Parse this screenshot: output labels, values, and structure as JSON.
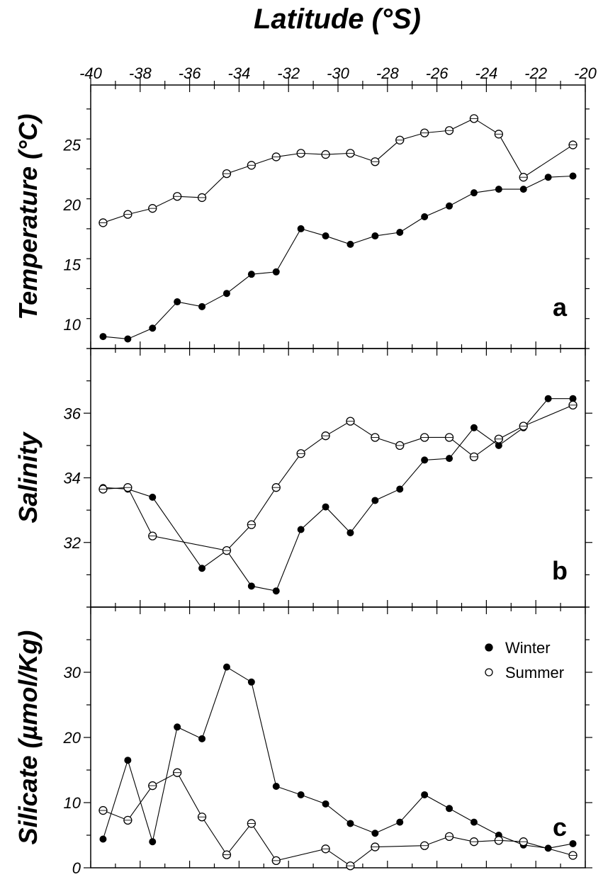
{
  "title": "Latitude (°S)",
  "x_axis": {
    "min": -40,
    "max": -20,
    "tick_labels": [
      "-40",
      "-38",
      "-36",
      "-34",
      "-32",
      "-30",
      "-28",
      "-26",
      "-24",
      "-22",
      "-20"
    ]
  },
  "legend": {
    "placement": "top-right",
    "winter": "Winter",
    "summer": "Summer"
  },
  "chart_data": [
    {
      "type": "line",
      "panel": "a",
      "ylabel": "Temperature (°C)",
      "ylim": [
        8,
        30
      ],
      "yticks": [
        10,
        15,
        20,
        25
      ],
      "x": [
        -39.5,
        -38.5,
        -37.5,
        -36.5,
        -35.5,
        -34.5,
        -33.5,
        -32.5,
        -31.5,
        -30.5,
        -29.5,
        -28.5,
        -27.5,
        -26.5,
        -25.5,
        -24.5,
        -23.5,
        -22.5,
        -21.5,
        -20.5
      ],
      "series": [
        {
          "name": "Winter",
          "marker": "filled",
          "x": [
            -39.5,
            -38.5,
            -37.5,
            -36.5,
            -35.5,
            -34.5,
            -33.5,
            -32.5,
            -31.5,
            -30.5,
            -29.5,
            -28.5,
            -27.5,
            -26.5,
            -25.5,
            -24.5,
            -23.5,
            -22.5,
            -21.5,
            -20.5
          ],
          "values": [
            9.0,
            8.8,
            9.7,
            11.9,
            11.5,
            12.6,
            14.2,
            14.4,
            18.0,
            17.4,
            16.7,
            17.4,
            17.7,
            19.0,
            19.9,
            21.0,
            21.3,
            21.3,
            22.3,
            22.4
          ]
        },
        {
          "name": "Summer",
          "marker": "open",
          "x": [
            -39.5,
            -38.5,
            -37.5,
            -36.5,
            -35.5,
            -34.5,
            -33.5,
            -32.5,
            -31.5,
            -30.5,
            -29.5,
            -28.5,
            -27.5,
            -26.5,
            -25.5,
            -24.5,
            -23.5,
            -22.5,
            -20.5
          ],
          "values": [
            18.5,
            19.2,
            19.7,
            20.7,
            20.6,
            22.6,
            23.3,
            24.0,
            24.3,
            24.2,
            24.3,
            23.6,
            25.4,
            26.0,
            26.2,
            27.2,
            25.9,
            22.3,
            25.0
          ]
        }
      ]
    },
    {
      "type": "line",
      "panel": "b",
      "ylabel": "Salinity",
      "ylim": [
        30,
        38
      ],
      "yticks": [
        32,
        34,
        36
      ],
      "series": [
        {
          "name": "Winter",
          "marker": "filled",
          "x": [
            -39.5,
            -38.5,
            -37.5,
            -35.5,
            -34.5,
            -33.5,
            -32.5,
            -31.5,
            -30.5,
            -29.5,
            -28.5,
            -27.5,
            -26.5,
            -25.5,
            -24.5,
            -23.5,
            -22.5,
            -21.5,
            -20.5
          ],
          "values": [
            33.7,
            33.65,
            33.4,
            31.2,
            31.75,
            30.65,
            30.5,
            32.4,
            33.1,
            32.3,
            33.3,
            33.65,
            34.55,
            34.6,
            35.55,
            35.0,
            35.55,
            36.45,
            36.45
          ]
        },
        {
          "name": "Summer",
          "marker": "open",
          "x": [
            -39.5,
            -38.5,
            -37.5,
            -34.5,
            -33.5,
            -32.5,
            -31.5,
            -30.5,
            -29.5,
            -28.5,
            -27.5,
            -26.5,
            -25.5,
            -24.5,
            -23.5,
            -22.5,
            -20.5
          ],
          "values": [
            33.65,
            33.7,
            32.2,
            31.75,
            32.55,
            33.7,
            34.75,
            35.3,
            35.75,
            35.25,
            35.0,
            35.25,
            35.25,
            34.65,
            35.2,
            35.6,
            36.25
          ]
        }
      ]
    },
    {
      "type": "line",
      "panel": "c",
      "ylabel": "Silicate (µmol/Kg)",
      "ylim": [
        0,
        40
      ],
      "yticks": [
        0,
        10,
        20,
        30
      ],
      "series": [
        {
          "name": "Winter",
          "marker": "filled",
          "x": [
            -39.5,
            -38.5,
            -37.5,
            -36.5,
            -35.5,
            -34.5,
            -33.5,
            -32.5,
            -31.5,
            -30.5,
            -29.5,
            -28.5,
            -27.5,
            -26.5,
            -25.5,
            -24.5,
            -23.5,
            -22.5,
            -21.5,
            -20.5
          ],
          "values": [
            4.4,
            16.5,
            4.0,
            21.6,
            19.8,
            30.8,
            28.5,
            12.5,
            11.2,
            9.8,
            6.8,
            5.3,
            7.0,
            11.2,
            9.1,
            7.0,
            5.0,
            3.5,
            3.0,
            3.7
          ]
        },
        {
          "name": "Summer",
          "marker": "open",
          "x": [
            -39.5,
            -38.5,
            -37.5,
            -36.5,
            -35.5,
            -34.5,
            -33.5,
            -32.5,
            -30.5,
            -29.5,
            -28.5,
            -26.5,
            -25.5,
            -24.5,
            -23.5,
            -22.5,
            -20.5
          ],
          "values": [
            8.8,
            7.3,
            12.6,
            14.6,
            7.8,
            2.0,
            6.8,
            1.1,
            2.9,
            0.3,
            3.2,
            3.4,
            4.8,
            4.0,
            4.2,
            4.0,
            1.9
          ]
        }
      ]
    }
  ]
}
